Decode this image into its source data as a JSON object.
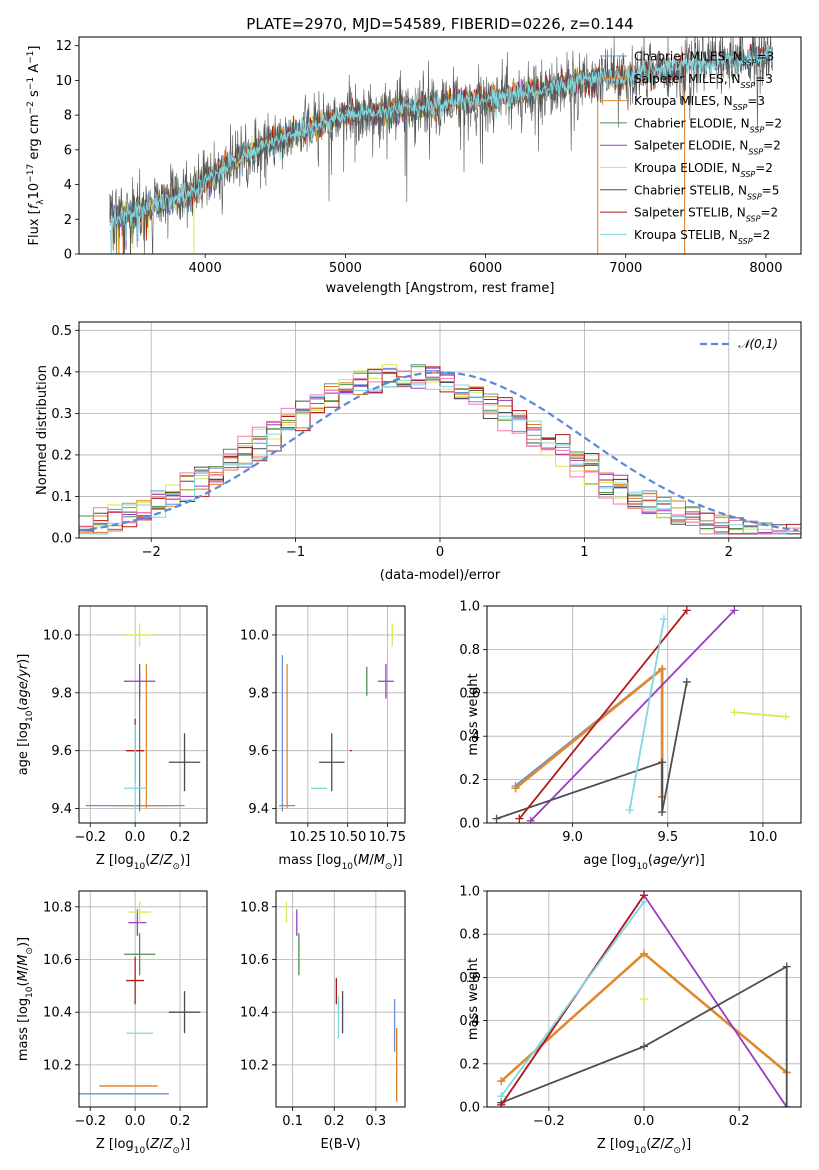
{
  "colors": {
    "Chabrier MILES": "#6b8fd6",
    "Salpeter MILES": "#e07b1e",
    "Kroupa MILES": "#e08a2e",
    "Chabrier ELODIE": "#4f8f4f",
    "Salpeter ELODIE": "#9a3bc2",
    "Kroupa ELODIE": "#d9e858",
    "Chabrier STELIB": "#4d4d4d",
    "Salpeter STELIB": "#b01a1a",
    "Kroupa STELIB": "#7fd8e0",
    "normal": "#5a8ad6",
    "pink": "#f07ab4"
  },
  "chart_data": [
    {
      "type": "line",
      "title": "PLATE=2970, MJD=54589, FIBERID=0226, z=0.144",
      "xlabel": "wavelength [Angstrom, rest frame]",
      "ylabel": "Flux [f_λ 10^-17 erg cm^-2 s^-1 A^-1]",
      "xlim": [
        3100,
        8250
      ],
      "ylim": [
        0,
        12.5
      ],
      "xticks": [
        4000,
        5000,
        6000,
        7000,
        8000
      ],
      "yticks": [
        0,
        2,
        4,
        6,
        8,
        10,
        12
      ],
      "grid": false,
      "legend_position": "upper right",
      "legend_entries": [
        "Chabrier MILES, N_SSP=3",
        "Salpeter MILES, N_SSP=3",
        "Kroupa MILES, N_SSP=3",
        "Chabrier ELODIE, N_SSP=2",
        "Salpeter ELODIE, N_SSP=2",
        "Kroupa ELODIE, N_SSP=2",
        "Chabrier STELIB, N_SSP=5",
        "Salpeter STELIB, N_SSP=2",
        "Kroupa STELIB, N_SSP=2"
      ],
      "continuum": {
        "x": [
          3320,
          3500,
          3700,
          3900,
          4000,
          4200,
          4400,
          4600,
          4800,
          5000,
          5200,
          5400,
          5600,
          5800,
          6000,
          6200,
          6400,
          6600,
          6800,
          7000,
          7200,
          7400,
          7600,
          7800,
          8000
        ],
        "y": [
          2.1,
          2.4,
          3.0,
          3.5,
          4.2,
          5.3,
          6.2,
          6.8,
          7.4,
          8.0,
          8.1,
          8.3,
          8.5,
          8.8,
          8.9,
          9.2,
          9.4,
          9.8,
          10.1,
          10.2,
          10.5,
          10.8,
          11.0,
          11.2,
          11.4
        ]
      }
    },
    {
      "type": "line",
      "xlabel": "(data-model)/error",
      "ylabel": "Normed distribution",
      "xlim": [
        -2.5,
        2.5
      ],
      "ylim": [
        0,
        0.52
      ],
      "xticks": [
        -2,
        -1,
        0,
        1,
        2
      ],
      "yticks": [
        0.0,
        0.1,
        0.2,
        0.3,
        0.4,
        0.5
      ],
      "grid": true,
      "legend_position": "upper right",
      "legend_entries": [
        "𝒩(0,1)"
      ],
      "series": [
        {
          "name": "𝒩(0,1)",
          "function": "normal_pdf",
          "mean": 0,
          "sigma": 1
        }
      ]
    },
    {
      "type": "scatter",
      "xlabel": "Z [log10(Z/Z⊙)]",
      "ylabel": "age [log10(age/yr)]",
      "xlim": [
        -0.25,
        0.32
      ],
      "ylim": [
        9.35,
        10.1
      ],
      "xticks": [
        -0.2,
        0.0,
        0.2
      ],
      "yticks": [
        9.4,
        9.6,
        9.8,
        10.0
      ],
      "grid": true,
      "points": [
        {
          "model": "Chabrier MILES",
          "x": 0.0,
          "y": 9.41,
          "xerr": 0.22,
          "yerr": 0.0
        },
        {
          "model": "Salpeter MILES",
          "x": 0.03,
          "y": 9.41,
          "xerr": 0.13,
          "yerr": 0.0
        },
        {
          "model": "Kroupa MILES",
          "x": 0.05,
          "y": 9.65,
          "xerr": 0.0,
          "yerr": 0.25
        },
        {
          "model": "Chabrier ELODIE",
          "x": 0.02,
          "y": 9.63,
          "xerr": 0.0,
          "yerr": 0.24
        },
        {
          "model": "Salpeter ELODIE",
          "x": 0.02,
          "y": 9.84,
          "xerr": 0.07,
          "yerr": 0.06
        },
        {
          "model": "Kroupa ELODIE",
          "x": 0.02,
          "y": 10.0,
          "xerr": 0.07,
          "yerr": 0.04
        },
        {
          "model": "Chabrier STELIB",
          "x": 0.22,
          "y": 9.56,
          "xerr": 0.07,
          "yerr": 0.1
        },
        {
          "model": "Salpeter STELIB",
          "x": 0.0,
          "y": 9.6,
          "xerr": 0.04,
          "yerr": 0.11
        },
        {
          "model": "Kroupa STELIB",
          "x": 0.0,
          "y": 9.47,
          "xerr": 0.05,
          "yerr": 0.22
        }
      ]
    },
    {
      "type": "scatter",
      "xlabel": "mass [log10(M/M⊙)]",
      "ylabel": "",
      "xlim": [
        10.05,
        10.86
      ],
      "ylim": [
        9.35,
        10.1
      ],
      "xticks": [
        10.25,
        10.5,
        10.75
      ],
      "yticks": [
        9.4,
        9.6,
        9.8,
        10.0
      ],
      "grid": true,
      "points": [
        {
          "model": "Chabrier MILES",
          "x": 10.09,
          "y": 9.66,
          "xerr": 0.0,
          "yerr": 0.27
        },
        {
          "model": "Salpeter MILES",
          "x": 10.12,
          "y": 9.41,
          "xerr": 0.05,
          "yerr": 0.0
        },
        {
          "model": "Kroupa MILES",
          "x": 10.12,
          "y": 9.65,
          "xerr": 0.0,
          "yerr": 0.25
        },
        {
          "model": "Chabrier ELODIE",
          "x": 10.62,
          "y": 9.84,
          "xerr": 0.0,
          "yerr": 0.05
        },
        {
          "model": "Salpeter ELODIE",
          "x": 10.74,
          "y": 9.84,
          "xerr": 0.05,
          "yerr": 0.06
        },
        {
          "model": "Kroupa ELODIE",
          "x": 10.78,
          "y": 10.0,
          "xerr": 0.02,
          "yerr": 0.04
        },
        {
          "model": "Chabrier STELIB",
          "x": 10.4,
          "y": 9.56,
          "xerr": 0.08,
          "yerr": 0.1
        },
        {
          "model": "Salpeter STELIB",
          "x": 10.52,
          "y": 9.6,
          "xerr": 0.0,
          "yerr": 0.0
        },
        {
          "model": "Kroupa STELIB",
          "x": 10.32,
          "y": 9.47,
          "xerr": 0.05,
          "yerr": 0.0
        }
      ]
    },
    {
      "type": "line",
      "xlabel": "age [log10(age/yr)]",
      "ylabel": "mass weight",
      "xlim": [
        8.55,
        10.2
      ],
      "ylim": [
        0,
        1.0
      ],
      "xticks": [
        9.0,
        9.5,
        10.0
      ],
      "yticks": [
        0.0,
        0.2,
        0.4,
        0.6,
        0.8,
        1.0
      ],
      "grid": true,
      "series": [
        {
          "name": "Chabrier MILES",
          "x": [
            8.7,
            9.47,
            9.47
          ],
          "y": [
            0.17,
            0.71,
            0.12
          ]
        },
        {
          "name": "Salpeter MILES",
          "x": [
            8.7,
            9.47,
            9.47
          ],
          "y": [
            0.16,
            0.71,
            0.12
          ]
        },
        {
          "name": "Kroupa MILES",
          "x": [
            8.7,
            9.47,
            9.47
          ],
          "y": [
            0.16,
            0.71,
            0.12
          ]
        },
        {
          "name": "Salpeter ELODIE",
          "x": [
            8.78,
            9.85
          ],
          "y": [
            0.01,
            0.98
          ]
        },
        {
          "name": "Kroupa ELODIE",
          "x": [
            9.85,
            10.12
          ],
          "y": [
            0.51,
            0.49
          ]
        },
        {
          "name": "Chabrier STELIB",
          "x": [
            8.6,
            9.47,
            9.47,
            9.6
          ],
          "y": [
            0.02,
            0.28,
            0.05,
            0.65
          ]
        },
        {
          "name": "Salpeter STELIB",
          "x": [
            8.72,
            9.6
          ],
          "y": [
            0.02,
            0.98
          ]
        },
        {
          "name": "Kroupa STELIB",
          "x": [
            9.3,
            9.48
          ],
          "y": [
            0.06,
            0.94
          ]
        }
      ]
    },
    {
      "type": "scatter",
      "xlabel": "Z [log10(Z/Z⊙)]",
      "ylabel": "mass [log10(M/M⊙)]",
      "xlim": [
        -0.25,
        0.32
      ],
      "ylim": [
        10.04,
        10.86
      ],
      "xticks": [
        -0.2,
        0.0,
        0.2
      ],
      "yticks": [
        10.2,
        10.4,
        10.6,
        10.8
      ],
      "grid": true,
      "points": [
        {
          "model": "Chabrier MILES",
          "x": -0.07,
          "y": 10.09,
          "xerr": 0.22,
          "yerr": 0.0
        },
        {
          "model": "Salpeter MILES",
          "x": -0.03,
          "y": 10.12,
          "xerr": 0.13,
          "yerr": 0.0
        },
        {
          "model": "Kroupa MILES",
          "x": 0.05,
          "y": 10.12,
          "xerr": 0.0,
          "yerr": 0.0
        },
        {
          "model": "Chabrier ELODIE",
          "x": 0.02,
          "y": 10.62,
          "xerr": 0.07,
          "yerr": 0.08
        },
        {
          "model": "Salpeter ELODIE",
          "x": 0.01,
          "y": 10.74,
          "xerr": 0.04,
          "yerr": 0.05
        },
        {
          "model": "Kroupa ELODIE",
          "x": 0.02,
          "y": 10.78,
          "xerr": 0.05,
          "yerr": 0.04
        },
        {
          "model": "Chabrier STELIB",
          "x": 0.22,
          "y": 10.4,
          "xerr": 0.07,
          "yerr": 0.08
        },
        {
          "model": "Salpeter STELIB",
          "x": 0.0,
          "y": 10.52,
          "xerr": 0.04,
          "yerr": 0.09
        },
        {
          "model": "Kroupa STELIB",
          "x": 0.02,
          "y": 10.32,
          "xerr": 0.06,
          "yerr": 0.0
        }
      ]
    },
    {
      "type": "scatter",
      "xlabel": "E(B-V)",
      "ylabel": "",
      "xlim": [
        0.06,
        0.37
      ],
      "ylim": [
        10.04,
        10.86
      ],
      "xticks": [
        0.1,
        0.2,
        0.3
      ],
      "yticks": [
        10.2,
        10.4,
        10.6,
        10.8
      ],
      "grid": true,
      "points": [
        {
          "model": "Kroupa ELODIE",
          "x": 0.085,
          "y": 10.78,
          "yerr": 0.04
        },
        {
          "model": "Salpeter ELODIE",
          "x": 0.11,
          "y": 10.74,
          "yerr": 0.05
        },
        {
          "model": "Chabrier ELODIE",
          "x": 0.115,
          "y": 10.62,
          "yerr": 0.08
        },
        {
          "model": "Salpeter STELIB",
          "x": 0.205,
          "y": 10.48,
          "yerr": 0.05
        },
        {
          "model": "Kroupa STELIB",
          "x": 0.21,
          "y": 10.38,
          "yerr": 0.08
        },
        {
          "model": "Chabrier STELIB",
          "x": 0.22,
          "y": 10.4,
          "yerr": 0.08
        },
        {
          "model": "Salpeter MILES",
          "x": 0.35,
          "y": 10.2,
          "yerr": 0.14
        },
        {
          "model": "Chabrier MILES",
          "x": 0.345,
          "y": 10.35,
          "yerr": 0.1
        }
      ]
    },
    {
      "type": "line",
      "xlabel": "Z [log10(Z/Z⊙)]",
      "ylabel": "mass weight",
      "xlim": [
        -0.33,
        0.33
      ],
      "ylim": [
        0,
        1.0
      ],
      "xticks": [
        -0.2,
        0.0,
        0.2
      ],
      "yticks": [
        0.0,
        0.2,
        0.4,
        0.6,
        0.8,
        1.0
      ],
      "grid": true,
      "series": [
        {
          "name": "Salpeter MILES",
          "x": [
            -0.3,
            0.0,
            0.3
          ],
          "y": [
            0.12,
            0.71,
            0.16
          ]
        },
        {
          "name": "Kroupa MILES",
          "x": [
            -0.3,
            0.0,
            0.3
          ],
          "y": [
            0.12,
            0.71,
            0.16
          ]
        },
        {
          "name": "Salpeter ELODIE",
          "x": [
            -0.3,
            0.0,
            0.3
          ],
          "y": [
            0.01,
            0.98,
            0.0
          ]
        },
        {
          "name": "Kroupa ELODIE",
          "x": [
            0.0
          ],
          "y": [
            0.5
          ]
        },
        {
          "name": "Chabrier STELIB",
          "x": [
            -0.3,
            0.0,
            0.3,
            0.3
          ],
          "y": [
            0.02,
            0.28,
            0.65,
            0.0
          ]
        },
        {
          "name": "Salpeter STELIB",
          "x": [
            -0.3,
            0.0
          ],
          "y": [
            0.01,
            0.98
          ]
        },
        {
          "name": "Kroupa STELIB",
          "x": [
            -0.3,
            0.0
          ],
          "y": [
            0.05,
            0.95
          ]
        }
      ]
    }
  ]
}
